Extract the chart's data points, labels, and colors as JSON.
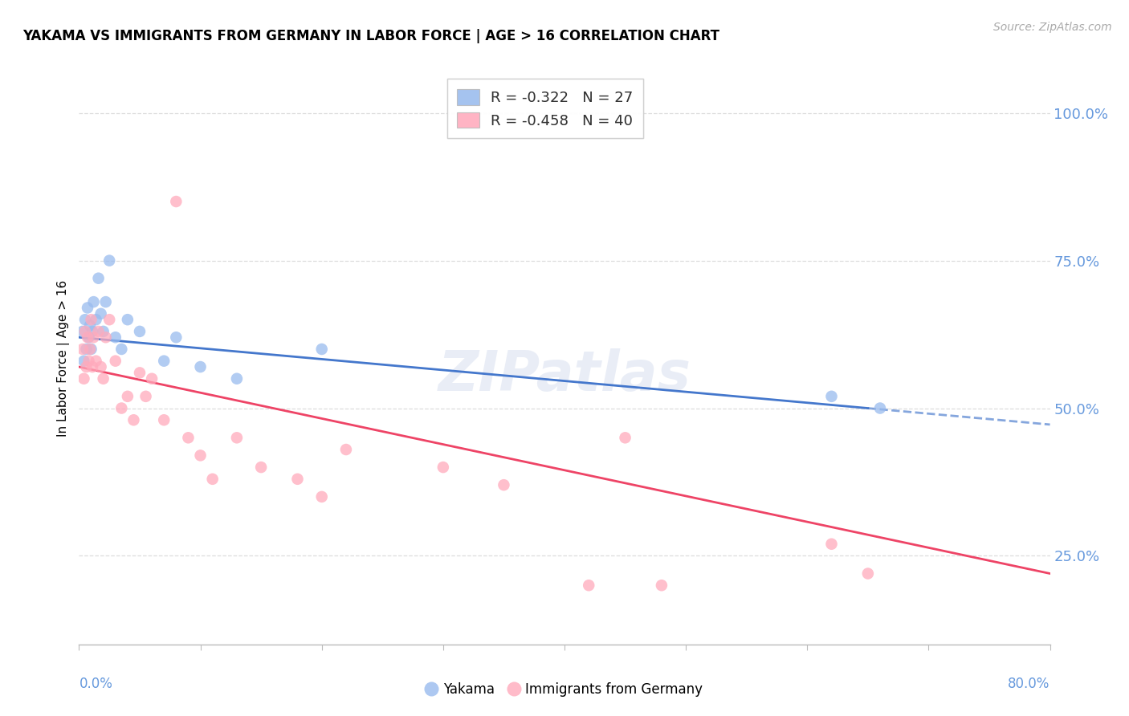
{
  "title": "YAKAMA VS IMMIGRANTS FROM GERMANY IN LABOR FORCE | AGE > 16 CORRELATION CHART",
  "source": "Source: ZipAtlas.com",
  "ylabel": "In Labor Force | Age > 16",
  "right_yticks": [
    25.0,
    50.0,
    75.0,
    100.0
  ],
  "xmin": 0.0,
  "xmax": 80.0,
  "ymin": 10.0,
  "ymax": 107.0,
  "legend1_r": "-0.322",
  "legend1_n": "27",
  "legend2_r": "-0.458",
  "legend2_n": "40",
  "color_yakama": "#99BBEE",
  "color_germany": "#FFAABC",
  "color_trendline_yakama": "#4477CC",
  "color_trendline_germany": "#EE4466",
  "color_right_axis": "#6699DD",
  "color_grid": "#DDDDDD",
  "yakama_x": [
    0.3,
    0.4,
    0.5,
    0.6,
    0.7,
    0.8,
    0.9,
    1.0,
    1.1,
    1.2,
    1.4,
    1.6,
    1.8,
    2.0,
    2.2,
    2.5,
    3.0,
    3.5,
    4.0,
    5.0,
    7.0,
    8.0,
    10.0,
    13.0,
    20.0,
    62.0,
    66.0
  ],
  "yakama_y": [
    63.0,
    58.0,
    65.0,
    60.0,
    67.0,
    62.0,
    64.0,
    60.0,
    63.0,
    68.0,
    65.0,
    72.0,
    66.0,
    63.0,
    68.0,
    75.0,
    62.0,
    60.0,
    65.0,
    63.0,
    58.0,
    62.0,
    57.0,
    55.0,
    60.0,
    52.0,
    50.0
  ],
  "germany_x": [
    0.3,
    0.4,
    0.5,
    0.6,
    0.7,
    0.8,
    0.9,
    1.0,
    1.1,
    1.2,
    1.4,
    1.6,
    1.8,
    2.0,
    2.2,
    2.5,
    3.0,
    3.5,
    4.0,
    4.5,
    5.0,
    5.5,
    6.0,
    7.0,
    8.0,
    9.0,
    10.0,
    11.0,
    13.0,
    15.0,
    18.0,
    20.0,
    22.0,
    30.0,
    35.0,
    42.0,
    45.0,
    48.0,
    62.0,
    65.0
  ],
  "germany_y": [
    60.0,
    55.0,
    63.0,
    57.0,
    62.0,
    58.0,
    60.0,
    65.0,
    57.0,
    62.0,
    58.0,
    63.0,
    57.0,
    55.0,
    62.0,
    65.0,
    58.0,
    50.0,
    52.0,
    48.0,
    56.0,
    52.0,
    55.0,
    48.0,
    85.0,
    45.0,
    42.0,
    38.0,
    45.0,
    40.0,
    38.0,
    35.0,
    43.0,
    40.0,
    37.0,
    20.0,
    45.0,
    20.0,
    27.0,
    22.0
  ],
  "watermark": "ZIPatlas",
  "watermark_color": "#AABBDD",
  "trendline_y_x0": 62.0,
  "trendline_y_x65": 50.0,
  "trendline_g_x0": 57.0,
  "trendline_g_x80": 22.0
}
